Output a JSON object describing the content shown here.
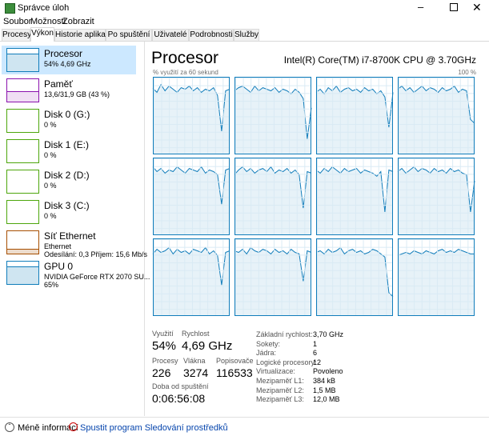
{
  "window": {
    "title": "Správce úloh"
  },
  "menu": [
    "Soubor",
    "Možnosti",
    "Zobrazit"
  ],
  "tabs": [
    "Procesy",
    "Výkon",
    "Historie aplikací",
    "Po spuštění",
    "Uživatelé",
    "Podrobnosti",
    "Služby"
  ],
  "sidebar": [
    {
      "name": "Procesor",
      "detail": "54% 4,69 GHz",
      "color": "#117dbb"
    },
    {
      "name": "Paměť",
      "detail": "13,6/31,9 GB (43 %)",
      "color": "#8b12ae"
    },
    {
      "name": "Disk 0 (G:)",
      "detail": "0 %",
      "color": "#4da60c"
    },
    {
      "name": "Disk 1 (E:)",
      "detail": "0 %",
      "color": "#4da60c"
    },
    {
      "name": "Disk 2 (D:)",
      "detail": "0 %",
      "color": "#4da60c"
    },
    {
      "name": "Disk 3 (C:)",
      "detail": "0 %",
      "color": "#4da60c"
    },
    {
      "name": "Síť Ethernet",
      "detail": "Ethernet",
      "detail2": "Odesílání: 0,3 Příjem: 15,6 Mb/s",
      "color": "#a74f01"
    },
    {
      "name": "GPU 0",
      "detail": "NVIDIA GeForce RTX 2070 SU...",
      "detail2": "65%",
      "color": "#117dbb"
    }
  ],
  "panel": {
    "title": "Procesor",
    "cpu_name": "Intel(R) Core(TM) i7-8700K CPU @ 3.70GHz",
    "graph_label": "% využití za 60 sekund",
    "graph_max": "100 %"
  },
  "cpu_graphs": {
    "ylim": [
      0,
      100
    ],
    "color": "#117dbb",
    "cores": [
      {
        "values": [
          85,
          80,
          90,
          82,
          88,
          84,
          80,
          86,
          84,
          88,
          82,
          86,
          80,
          84,
          82,
          86,
          76,
          30,
          82,
          84
        ]
      },
      {
        "values": [
          82,
          86,
          88,
          84,
          80,
          88,
          82,
          86,
          84,
          82,
          86,
          80,
          84,
          82,
          78,
          84,
          80,
          72,
          20,
          60
        ]
      },
      {
        "values": [
          80,
          84,
          78,
          86,
          82,
          88,
          80,
          84,
          86,
          82,
          84,
          80,
          86,
          82,
          84,
          78,
          82,
          74,
          35,
          80
        ]
      },
      {
        "values": [
          84,
          88,
          82,
          86,
          80,
          84,
          88,
          82,
          86,
          84,
          80,
          86,
          82,
          84,
          88,
          80,
          84,
          82,
          45,
          40
        ]
      },
      {
        "values": [
          88,
          82,
          86,
          80,
          84,
          82,
          88,
          84,
          80,
          86,
          84,
          82,
          88,
          80,
          84,
          82,
          78,
          40,
          84,
          86
        ]
      },
      {
        "values": [
          78,
          84,
          88,
          82,
          86,
          80,
          84,
          86,
          82,
          88,
          80,
          84,
          82,
          86,
          80,
          84,
          78,
          35,
          82,
          80
        ]
      },
      {
        "values": [
          84,
          80,
          86,
          82,
          88,
          84,
          80,
          86,
          82,
          84,
          86,
          80,
          84,
          82,
          80,
          76,
          82,
          30,
          84,
          82
        ]
      },
      {
        "values": [
          82,
          86,
          80,
          84,
          88,
          82,
          86,
          84,
          80,
          86,
          82,
          84,
          80,
          86,
          82,
          84,
          80,
          78,
          30,
          70
        ]
      },
      {
        "values": [
          80,
          86,
          82,
          84,
          88,
          80,
          86,
          82,
          84,
          80,
          86,
          84,
          82,
          88,
          80,
          84,
          78,
          40,
          82,
          84
        ]
      },
      {
        "values": [
          84,
          82,
          86,
          80,
          88,
          84,
          82,
          86,
          84,
          80,
          86,
          82,
          84,
          80,
          86,
          82,
          80,
          45,
          84,
          82
        ]
      },
      {
        "values": [
          82,
          84,
          80,
          86,
          82,
          84,
          88,
          80,
          84,
          86,
          82,
          84,
          80,
          82,
          86,
          84,
          80,
          76,
          30,
          25
        ]
      },
      {
        "values": [
          78,
          80,
          82,
          80,
          84,
          82,
          80,
          84,
          82,
          80,
          84,
          86,
          82,
          84,
          82,
          86,
          84,
          82,
          80,
          80
        ]
      }
    ]
  },
  "stats": [
    {
      "label": "Využití",
      "value": "54%"
    },
    {
      "label": "Rychlost",
      "value": "4,69 GHz"
    },
    {
      "label": "Procesy",
      "value": "226"
    },
    {
      "label": "Vlákna",
      "value": "3274"
    },
    {
      "label": "Popisovače",
      "value": "116533"
    },
    {
      "label": "Doba od spuštění",
      "value": "0:06:56:08"
    }
  ],
  "specs": [
    [
      "Základní rychlost:",
      "3,70 GHz"
    ],
    [
      "Sokety:",
      "1"
    ],
    [
      "Jádra:",
      "6"
    ],
    [
      "Logické procesory:",
      "12"
    ],
    [
      "Virtualizace:",
      "Povoleno"
    ],
    [
      "Mezipaměť L1:",
      "384 kB"
    ],
    [
      "Mezipaměť L2:",
      "1,5 MB"
    ],
    [
      "Mezipaměť L3:",
      "12,0 MB"
    ]
  ],
  "footer": {
    "less": "Méně informací",
    "link": "Spustit program Sledování prostředků"
  }
}
